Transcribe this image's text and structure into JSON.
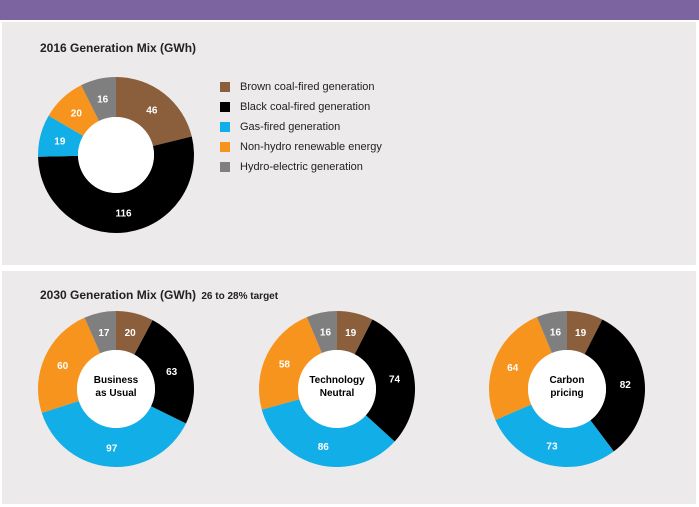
{
  "colors": {
    "brown": "#8b5e3c",
    "black": "#000000",
    "gas": "#12aee7",
    "nonhydro": "#f7941d",
    "hydro": "#7f7f7f",
    "label_light": "#ffffff",
    "label_dark": "#000000"
  },
  "panel1": {
    "title": "2016 Generation Mix (GWh)"
  },
  "panel2": {
    "title": "2030 Generation Mix (GWh)",
    "subtitle": "26 to 28% target"
  },
  "legend": [
    {
      "label": "Brown coal-fired generation",
      "color": "#8b5e3c"
    },
    {
      "label": "Black coal-fired generation",
      "color": "#000000"
    },
    {
      "label": "Gas-fired generation",
      "color": "#12aee7"
    },
    {
      "label": "Non-hydro renewable energy",
      "color": "#f7941d"
    },
    {
      "label": "Hydro-electric generation",
      "color": "#7f7f7f"
    }
  ],
  "chart_data": [
    {
      "type": "pie",
      "donut": true,
      "title": "2016 Generation Mix (GWh)",
      "center_label": "",
      "categories": [
        "Brown coal-fired generation",
        "Black coal-fired generation",
        "Gas-fired generation",
        "Non-hydro renewable energy",
        "Hydro-electric generation"
      ],
      "values": [
        46,
        116,
        19,
        20,
        16
      ]
    },
    {
      "type": "pie",
      "donut": true,
      "title": "2030 Generation Mix (GWh)",
      "center_label": "Business as Usual",
      "categories": [
        "Brown coal-fired generation",
        "Black coal-fired generation",
        "Gas-fired generation",
        "Non-hydro renewable energy",
        "Hydro-electric generation"
      ],
      "values": [
        20,
        63,
        97,
        60,
        17
      ]
    },
    {
      "type": "pie",
      "donut": true,
      "title": "2030 Generation Mix (GWh)",
      "center_label": "Technology Neutral",
      "categories": [
        "Brown coal-fired generation",
        "Black coal-fired generation",
        "Gas-fired generation",
        "Non-hydro renewable energy",
        "Hydro-electric generation"
      ],
      "values": [
        19,
        74,
        86,
        58,
        16
      ]
    },
    {
      "type": "pie",
      "donut": true,
      "title": "2030 Generation Mix (GWh)",
      "center_label": "Carbon pricing",
      "categories": [
        "Brown coal-fired generation",
        "Black coal-fired generation",
        "Gas-fired generation",
        "Non-hydro renewable energy",
        "Hydro-electric generation"
      ],
      "values": [
        19,
        82,
        73,
        64,
        16
      ]
    }
  ]
}
